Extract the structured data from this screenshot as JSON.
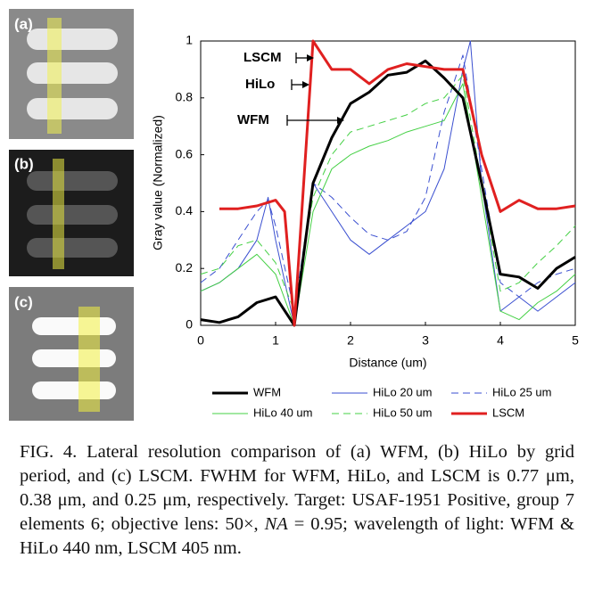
{
  "panels": [
    {
      "label": "(a)"
    },
    {
      "label": "(b)"
    },
    {
      "label": "(c)"
    }
  ],
  "chart_data": {
    "type": "line",
    "xlabel": "Distance (um)",
    "ylabel": "Gray value (Normalized)",
    "xlim": [
      0,
      5
    ],
    "xticks": [
      0,
      1,
      2,
      3,
      4,
      5
    ],
    "ylim": [
      0,
      1
    ],
    "yticks": [
      0,
      0.2,
      0.4,
      0.6,
      0.8,
      1
    ],
    "annotations": [
      "LSCM",
      "HiLo",
      "WFM"
    ],
    "series": [
      {
        "name": "WFM",
        "color": "#000000",
        "width": 3,
        "dash": false,
        "x": [
          0,
          0.25,
          0.5,
          0.75,
          1,
          1.25,
          1.5,
          1.75,
          2,
          2.25,
          2.5,
          2.75,
          3,
          3.25,
          3.5,
          3.75,
          4,
          4.25,
          4.5,
          4.75,
          5
        ],
        "values": [
          0.02,
          0.01,
          0.03,
          0.08,
          0.1,
          0.0,
          0.5,
          0.66,
          0.78,
          0.82,
          0.88,
          0.89,
          0.93,
          0.87,
          0.8,
          0.5,
          0.18,
          0.17,
          0.13,
          0.2,
          0.24
        ]
      },
      {
        "name": "HiLo 20 um",
        "color": "#3a4fd0",
        "width": 1,
        "dash": false,
        "x": [
          0,
          0.25,
          0.5,
          0.75,
          0.9,
          1,
          1.25,
          1.5,
          1.75,
          2,
          2.25,
          2.5,
          2.75,
          3,
          3.25,
          3.5,
          3.6,
          3.75,
          4,
          4.25,
          4.5,
          4.75,
          5
        ],
        "values": [
          0.12,
          0.15,
          0.2,
          0.3,
          0.45,
          0.3,
          0.0,
          0.5,
          0.4,
          0.3,
          0.25,
          0.3,
          0.35,
          0.4,
          0.55,
          0.9,
          1.0,
          0.5,
          0.05,
          0.1,
          0.05,
          0.1,
          0.15
        ]
      },
      {
        "name": "HiLo 25 um",
        "color": "#3a4fd0",
        "width": 1,
        "dash": true,
        "x": [
          0,
          0.25,
          0.5,
          0.75,
          0.9,
          1,
          1.25,
          1.5,
          1.75,
          2,
          2.25,
          2.5,
          2.75,
          3,
          3.25,
          3.5,
          3.75,
          4,
          4.25,
          4.5,
          4.75,
          5
        ],
        "values": [
          0.15,
          0.2,
          0.3,
          0.4,
          0.44,
          0.35,
          0.05,
          0.5,
          0.45,
          0.38,
          0.32,
          0.3,
          0.33,
          0.45,
          0.75,
          0.95,
          0.55,
          0.15,
          0.1,
          0.15,
          0.18,
          0.2
        ]
      },
      {
        "name": "HiLo 40 um",
        "color": "#44d044",
        "width": 1,
        "dash": false,
        "x": [
          0,
          0.25,
          0.5,
          0.75,
          1,
          1.25,
          1.5,
          1.75,
          2,
          2.25,
          2.5,
          2.75,
          3,
          3.25,
          3.5,
          3.75,
          4,
          4.25,
          4.5,
          4.75,
          5
        ],
        "values": [
          0.12,
          0.15,
          0.2,
          0.25,
          0.18,
          0.0,
          0.4,
          0.55,
          0.6,
          0.63,
          0.65,
          0.68,
          0.7,
          0.72,
          0.85,
          0.45,
          0.05,
          0.02,
          0.08,
          0.12,
          0.18
        ]
      },
      {
        "name": "HiLo 50 um",
        "color": "#44d044",
        "width": 1,
        "dash": true,
        "x": [
          0,
          0.25,
          0.5,
          0.75,
          1,
          1.25,
          1.5,
          1.75,
          2,
          2.25,
          2.5,
          2.75,
          3,
          3.25,
          3.5,
          3.75,
          4,
          4.25,
          4.5,
          4.75,
          5
        ],
        "values": [
          0.18,
          0.2,
          0.28,
          0.3,
          0.22,
          0.05,
          0.45,
          0.6,
          0.68,
          0.7,
          0.72,
          0.74,
          0.78,
          0.8,
          0.88,
          0.5,
          0.12,
          0.15,
          0.22,
          0.28,
          0.35
        ]
      },
      {
        "name": "LSCM",
        "color": "#e02020",
        "width": 3,
        "dash": false,
        "x": [
          0.25,
          0.5,
          0.75,
          1,
          1.12,
          1.25,
          1.5,
          1.75,
          2,
          2.25,
          2.5,
          2.75,
          3,
          3.25,
          3.5,
          3.75,
          4,
          4.25,
          4.5,
          4.75,
          5
        ],
        "values": [
          0.41,
          0.41,
          0.42,
          0.44,
          0.4,
          0.0,
          1.0,
          0.9,
          0.9,
          0.85,
          0.9,
          0.92,
          0.91,
          0.9,
          0.9,
          0.6,
          0.4,
          0.44,
          0.41,
          0.41,
          0.42
        ]
      }
    ]
  },
  "caption": [
    "FIG. 4. Lateral resolution comparison of (a) WFM, (b) HiLo by grid period, and (c) LSCM. FWHM for WFM, HiLo, and LSCM is 0.77 μm, 0.38 μm, and 0.25 μm, respectively. Target: USAF-1951 Positive, group 7 elements 6; objective lens: 50×, ",
    "NA",
    " = 0.95; wavelength of light: WFM & HiLo 440 nm, LSCM 405 nm."
  ]
}
